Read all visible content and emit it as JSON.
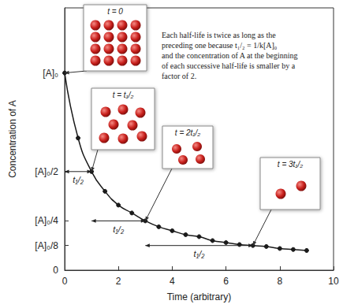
{
  "chart_data": {
    "type": "line",
    "x": [
      0,
      0.5,
      1,
      1.5,
      2,
      2.5,
      3,
      3.5,
      4,
      4.5,
      5,
      5.5,
      6,
      6.5,
      7,
      7.5,
      8,
      8.5,
      9
    ],
    "values": [
      1,
      0.67,
      0.5,
      0.4,
      0.33,
      0.29,
      0.25,
      0.22,
      0.2,
      0.18,
      0.17,
      0.15,
      0.14,
      0.13,
      0.125,
      0.12,
      0.11,
      0.105,
      0.1
    ],
    "color": "#1a1a1a",
    "marker": "circle",
    "line_style": "solid",
    "xlabel": "Time (arbitrary)",
    "ylabel": "Concentration of A",
    "xlim": [
      0,
      10
    ],
    "xticks": [
      0,
      2,
      4,
      6,
      8,
      10
    ],
    "ylim": [
      0,
      1.33
    ],
    "yticks": [
      0,
      {
        "value": 0.125,
        "label": "[A]₀/8"
      },
      {
        "value": 0.25,
        "label": "[A]₀/4"
      },
      {
        "value": 0.5,
        "label": "[A]₀/2"
      },
      {
        "value": 1,
        "label": "[A]₀"
      }
    ],
    "grid": false,
    "annotation": [
      "Each half-life is twice as long as the",
      "preceding one because t₁/₂ = 1/k[A]₀",
      "and the concentration of A at the beginning",
      "of each successive half-life is smaller by a",
      "factor of 2."
    ],
    "half_lives": [
      {
        "start": 0,
        "end": 1,
        "level": 0.5,
        "label": "t₁/₂"
      },
      {
        "start": 1,
        "end": 3,
        "level": 0.25,
        "label": "t₁/₂"
      },
      {
        "start": 3,
        "end": 7,
        "level": 0.125,
        "label": "t₁/₂"
      }
    ],
    "insets": [
      {
        "label": "t = 0",
        "time": 0,
        "concentration": 1,
        "particles": 16
      },
      {
        "label": "t = t₁/₂",
        "time": 1,
        "concentration": 0.5,
        "particles": 8
      },
      {
        "label": "t = 2t₁/₂",
        "time": 3,
        "concentration": 0.25,
        "particles": 4
      },
      {
        "label": "t = 3t₁/₂",
        "time": 7,
        "concentration": 0.125,
        "particles": 2
      }
    ]
  }
}
